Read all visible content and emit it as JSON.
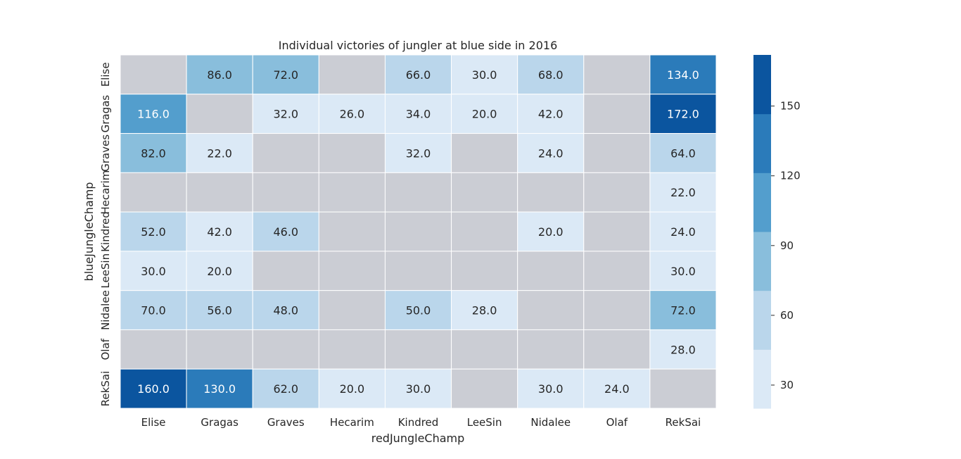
{
  "chart_data": {
    "type": "heatmap",
    "title": "Individual victories of jungler at blue side in 2016",
    "xlabel": "redJungleChamp",
    "ylabel": "blueJungleChamp",
    "x_categories": [
      "Elise",
      "Gragas",
      "Graves",
      "Hecarim",
      "Kindred",
      "LeeSin",
      "Nidalee",
      "Olaf",
      "RekSai"
    ],
    "y_categories": [
      "Elise",
      "Gragas",
      "Graves",
      "Hecarim",
      "Kindred",
      "LeeSin",
      "Nidalee",
      "Olaf",
      "RekSai"
    ],
    "values": [
      [
        null,
        86.0,
        72.0,
        null,
        66.0,
        30.0,
        68.0,
        null,
        134.0
      ],
      [
        116.0,
        null,
        32.0,
        26.0,
        34.0,
        20.0,
        42.0,
        null,
        172.0
      ],
      [
        82.0,
        22.0,
        null,
        null,
        32.0,
        null,
        24.0,
        null,
        64.0
      ],
      [
        null,
        null,
        null,
        null,
        null,
        null,
        null,
        null,
        22.0
      ],
      [
        52.0,
        42.0,
        46.0,
        null,
        null,
        null,
        20.0,
        null,
        24.0
      ],
      [
        30.0,
        20.0,
        null,
        null,
        null,
        null,
        null,
        null,
        30.0
      ],
      [
        70.0,
        56.0,
        48.0,
        null,
        50.0,
        28.0,
        null,
        null,
        72.0
      ],
      [
        null,
        null,
        null,
        null,
        null,
        null,
        null,
        null,
        28.0
      ],
      [
        160.0,
        130.0,
        62.0,
        20.0,
        30.0,
        null,
        30.0,
        24.0,
        null
      ]
    ],
    "value_format": "one-decimal",
    "colorbar": {
      "vmin": 20,
      "vmax": 172,
      "ticks": [
        30,
        60,
        90,
        120,
        150
      ],
      "colors": [
        "#dbe9f6",
        "#bad6eb",
        "#89bedc",
        "#539ecd",
        "#2b7bba",
        "#0b559f"
      ]
    },
    "missing_color": "#cbcdd4",
    "grid_line_color": "#ffffff",
    "colorbar_position": "right"
  }
}
